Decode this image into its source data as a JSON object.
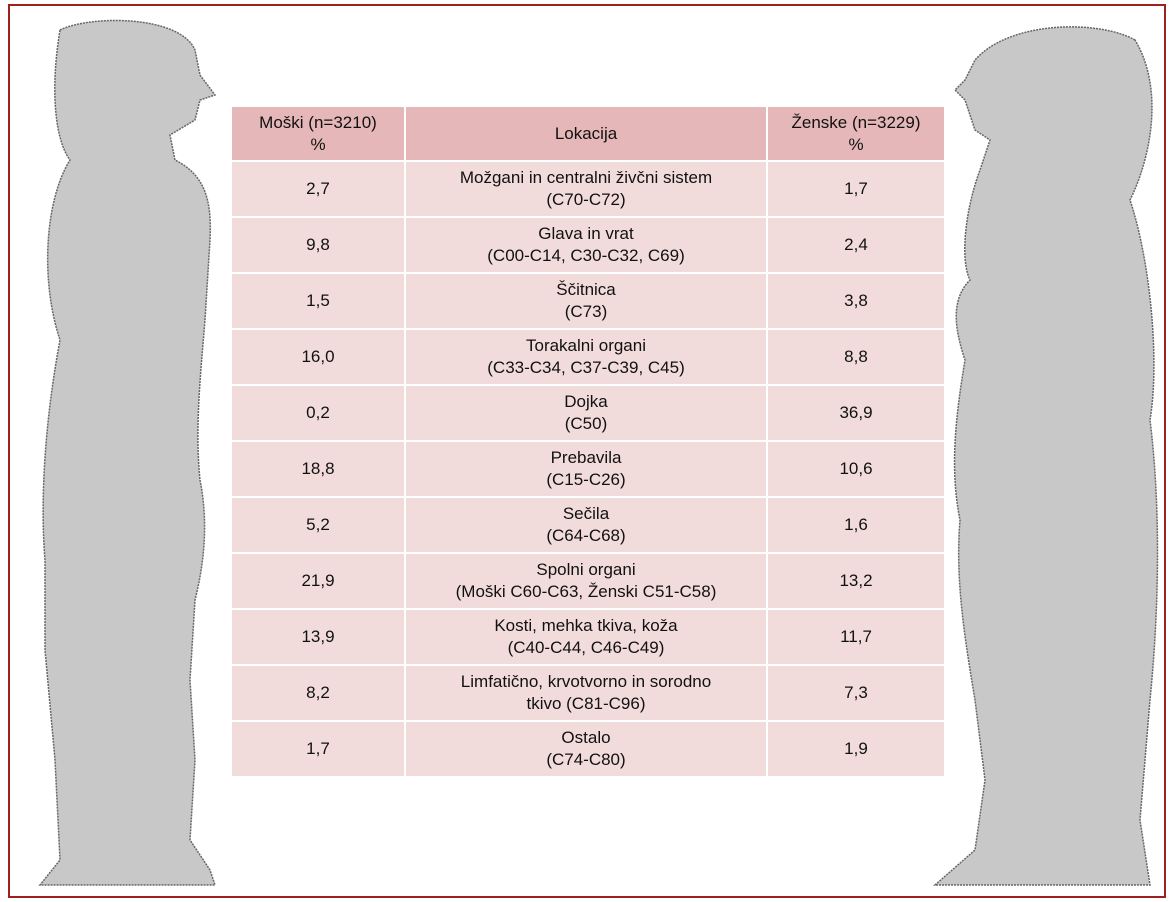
{
  "table": {
    "header": [
      "Moški (n=3210)\n%",
      "Lokacija",
      "Ženske (n=3229)\n%"
    ],
    "rows": [
      [
        "2,7",
        "Možgani in centralni živčni sistem\n(C70-C72)",
        "1,7"
      ],
      [
        "9,8",
        "Glava in vrat\n(C00-C14, C30-C32, C69)",
        "2,4"
      ],
      [
        "1,5",
        "Ščitnica\n(C73)",
        "3,8"
      ],
      [
        "16,0",
        "Torakalni organi\n(C33-C34, C37-C39, C45)",
        "8,8"
      ],
      [
        "0,2",
        "Dojka\n(C50)",
        "36,9"
      ],
      [
        "18,8",
        "Prebavila\n(C15-C26)",
        "10,6"
      ],
      [
        "5,2",
        "Sečila\n(C64-C68)",
        "1,6"
      ],
      [
        "21,9",
        "Spolni organi\n(Moški C60-C63, Ženski C51-C58)",
        "13,2"
      ],
      [
        "13,9",
        "Kosti, mehka tkiva, koža\n(C40-C44, C46-C49)",
        "11,7"
      ],
      [
        "8,2",
        "Limfatično, krvotvorno in sorodno\ntkivo (C81-C96)",
        "7,3"
      ],
      [
        "1,7",
        "Ostalo\n(C74-C80)",
        "1,9"
      ]
    ]
  }
}
